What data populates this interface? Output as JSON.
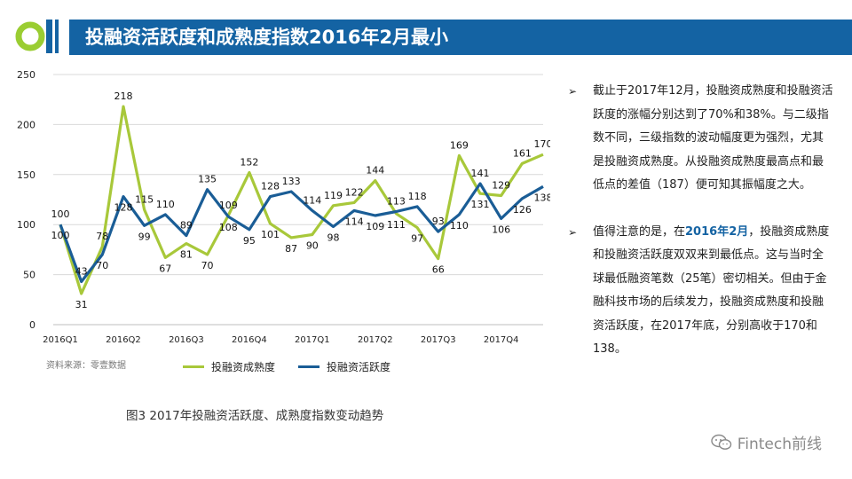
{
  "header": {
    "title": "投融资活跃度和成熟度指数2016年2月最小",
    "logo_color": "#9acd32",
    "bar_color": "#1463a3"
  },
  "chart_data": {
    "type": "line",
    "ylim": [
      0,
      250
    ],
    "yticks": [
      0,
      50,
      100,
      150,
      200,
      250
    ],
    "x_labels": [
      "2016Q1",
      "2016Q2",
      "2016Q3",
      "2016Q4",
      "2017Q1",
      "2017Q2",
      "2017Q3",
      "2017Q4"
    ],
    "points_per_label": 3,
    "series": [
      {
        "name": "投融资成熟度",
        "color": "#a8c83a",
        "values": [
          100,
          31,
          78,
          218,
          115,
          67,
          81,
          70,
          109,
          152,
          101,
          87,
          90,
          119,
          122,
          144,
          111,
          97,
          66,
          169,
          131,
          129,
          161,
          170
        ]
      },
      {
        "name": "投融资活跃度",
        "color": "#1a5d96",
        "values": [
          100,
          43,
          70,
          128,
          99,
          110,
          89,
          135,
          108,
          95,
          128,
          133,
          114,
          98,
          114,
          109,
          113,
          118,
          93,
          110,
          141,
          106,
          126,
          138
        ]
      }
    ]
  },
  "source_label": "资料来源：零壹数据",
  "caption": "图3   2017年投融资活跃度、成熟度指数变动趋势",
  "notes": {
    "bullet_symbol": "➢",
    "p1": "截止于2017年12月，投融资成熟度和投融资活跃度的涨幅分别达到了70%和38%。与二级指数不同，三级指数的波动幅度更为强烈，尤其是投融资成熟度。从投融资成熟度最高点和最低点的差值（187）便可知其振幅度之大。",
    "p2_before": "值得注意的是，在",
    "p2_highlight": "2016年2月",
    "p2_after": "，投融资成熟度和投融资活跃度双双来到最低点。这与当时全球最低融资笔数（25笔）密切相关。但由于金融科技市场的后续发力，投融资成熟度和投融资活跃度，在2017年底，分别高收于170和138。"
  },
  "watermark": {
    "icon": "wechat-icon",
    "text": "Fintech前线"
  }
}
